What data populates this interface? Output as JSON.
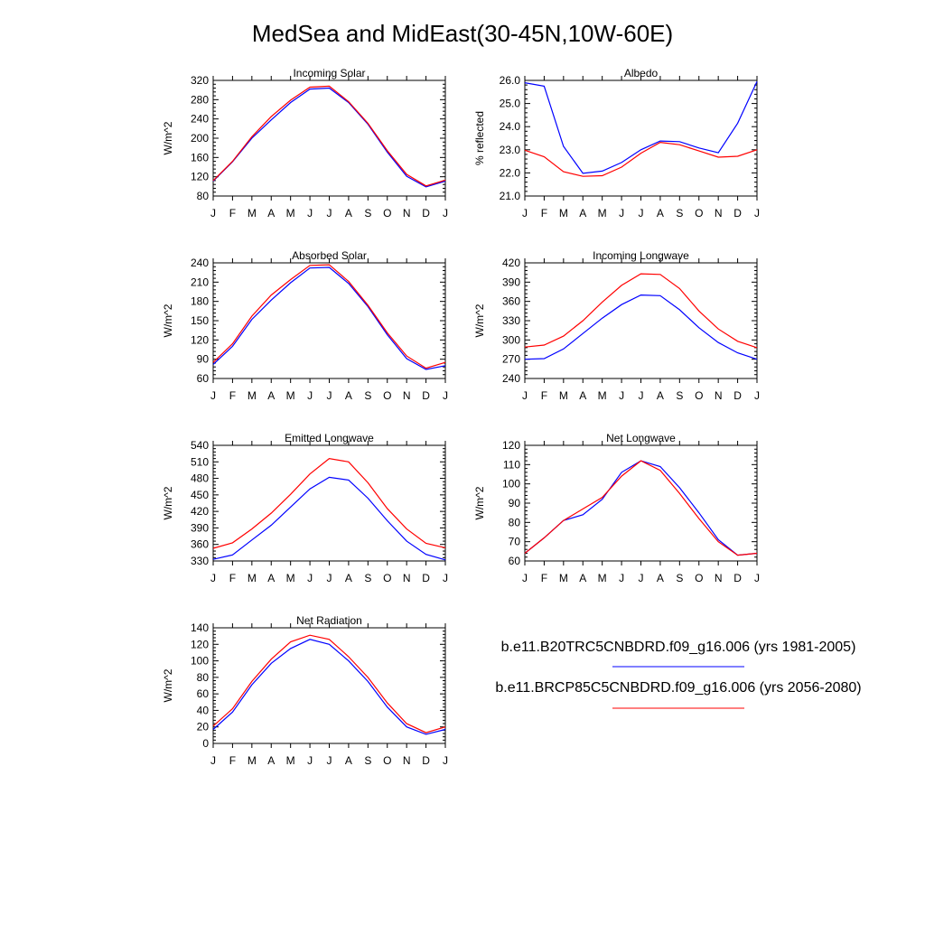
{
  "title": "MedSea and MidEast(30-45N,10W-60E)",
  "legend": {
    "entries": [
      {
        "label": "b.e11.B20TRC5CNBDRD.f09_g16.006 (yrs 1981-2005)",
        "color": "#0000ff"
      },
      {
        "label": "b.e11.BRCP85C5CNBDRD.f09_g16.006 (yrs 2056-2080)",
        "color": "#ff0000"
      }
    ]
  },
  "chart_data": [
    {
      "type": "line",
      "title": "Incoming Solar",
      "ylabel": "W/m^2",
      "xlabel": "",
      "categories": [
        "J",
        "F",
        "M",
        "A",
        "M",
        "J",
        "J",
        "A",
        "S",
        "O",
        "N",
        "D",
        "J"
      ],
      "ylim": [
        80,
        320
      ],
      "yticks": [
        80,
        120,
        160,
        200,
        240,
        280,
        320
      ],
      "ytick_labels": [
        "80",
        "120",
        "160",
        "200",
        "240",
        "280",
        "320"
      ],
      "series": [
        {
          "color": "#0000ff",
          "values": [
            111,
            151,
            200,
            238,
            274,
            302,
            304,
            274,
            229,
            171,
            121,
            99,
            111
          ]
        },
        {
          "color": "#ff0000",
          "values": [
            112,
            152,
            203,
            245,
            279,
            306,
            308,
            276,
            231,
            174,
            125,
            101,
            113
          ]
        }
      ]
    },
    {
      "type": "line",
      "title": "Albedo",
      "ylabel": "% reflected",
      "xlabel": "",
      "categories": [
        "J",
        "F",
        "M",
        "A",
        "M",
        "J",
        "J",
        "A",
        "S",
        "O",
        "N",
        "D",
        "J"
      ],
      "ylim": [
        21.0,
        26.0
      ],
      "yticks": [
        21.0,
        22.0,
        23.0,
        24.0,
        25.0,
        26.0
      ],
      "ytick_labels": [
        "21.0",
        "22.0",
        "23.0",
        "24.0",
        "25.0",
        "26.0"
      ],
      "series": [
        {
          "color": "#0000ff",
          "values": [
            25.9,
            25.75,
            23.15,
            21.98,
            22.08,
            22.45,
            23.0,
            23.38,
            23.35,
            23.08,
            22.87,
            24.15,
            25.95
          ]
        },
        {
          "color": "#ff0000",
          "values": [
            22.98,
            22.7,
            22.05,
            21.85,
            21.88,
            22.25,
            22.85,
            23.32,
            23.22,
            22.95,
            22.68,
            22.72,
            23.0
          ]
        }
      ]
    },
    {
      "type": "line",
      "title": "Absorbed Solar",
      "ylabel": "W/m^2",
      "xlabel": "",
      "categories": [
        "J",
        "F",
        "M",
        "A",
        "M",
        "J",
        "J",
        "A",
        "S",
        "O",
        "N",
        "D",
        "J"
      ],
      "ylim": [
        60,
        240
      ],
      "yticks": [
        60,
        90,
        120,
        150,
        180,
        210,
        240
      ],
      "ytick_labels": [
        "60",
        "90",
        "120",
        "150",
        "180",
        "210",
        "240"
      ],
      "series": [
        {
          "color": "#0000ff",
          "values": [
            82,
            110,
            152,
            182,
            209,
            232,
            233,
            208,
            172,
            128,
            91,
            74,
            80
          ]
        },
        {
          "color": "#ff0000",
          "values": [
            85,
            114,
            157,
            190,
            214,
            236,
            237,
            211,
            174,
            131,
            95,
            76,
            85
          ]
        }
      ]
    },
    {
      "type": "line",
      "title": "Incoming Longwave",
      "ylabel": "W/m^2",
      "xlabel": "",
      "categories": [
        "J",
        "F",
        "M",
        "A",
        "M",
        "J",
        "J",
        "A",
        "S",
        "O",
        "N",
        "D",
        "J"
      ],
      "ylim": [
        240,
        420
      ],
      "yticks": [
        240,
        270,
        300,
        330,
        360,
        390,
        420
      ],
      "ytick_labels": [
        "240",
        "270",
        "300",
        "330",
        "360",
        "390",
        "420"
      ],
      "series": [
        {
          "color": "#0000ff",
          "values": [
            270,
            271,
            286,
            310,
            334,
            355,
            370,
            369,
            347,
            319,
            296,
            280,
            270
          ]
        },
        {
          "color": "#ff0000",
          "values": [
            289,
            292,
            306,
            330,
            359,
            385,
            403,
            402,
            380,
            345,
            317,
            298,
            288
          ]
        }
      ]
    },
    {
      "type": "line",
      "title": "Emitted Longwave",
      "ylabel": "W/m^2",
      "xlabel": "",
      "categories": [
        "J",
        "F",
        "M",
        "A",
        "M",
        "J",
        "J",
        "A",
        "S",
        "O",
        "N",
        "D",
        "J"
      ],
      "ylim": [
        330,
        540
      ],
      "yticks": [
        330,
        360,
        390,
        420,
        450,
        480,
        510,
        540
      ],
      "ytick_labels": [
        "330",
        "360",
        "390",
        "420",
        "450",
        "480",
        "510",
        "540"
      ],
      "series": [
        {
          "color": "#0000ff",
          "values": [
            333,
            341,
            368,
            395,
            428,
            461,
            482,
            477,
            444,
            403,
            366,
            342,
            332
          ]
        },
        {
          "color": "#ff0000",
          "values": [
            353,
            363,
            388,
            417,
            451,
            488,
            516,
            510,
            472,
            425,
            388,
            362,
            354
          ]
        }
      ]
    },
    {
      "type": "line",
      "title": "Net Longwave",
      "ylabel": "W/m^2",
      "xlabel": "",
      "categories": [
        "J",
        "F",
        "M",
        "A",
        "M",
        "J",
        "J",
        "A",
        "S",
        "O",
        "N",
        "D",
        "J"
      ],
      "ylim": [
        60,
        120
      ],
      "yticks": [
        60,
        70,
        80,
        90,
        100,
        110,
        120
      ],
      "ytick_labels": [
        "60",
        "70",
        "80",
        "90",
        "100",
        "110",
        "120"
      ],
      "series": [
        {
          "color": "#0000ff",
          "values": [
            64,
            72,
            81,
            84,
            92,
            106,
            112,
            109,
            98,
            85,
            71,
            63,
            64
          ]
        },
        {
          "color": "#ff0000",
          "values": [
            64,
            72,
            81,
            87,
            93,
            104,
            112,
            107,
            95,
            82,
            70,
            63,
            64
          ]
        }
      ]
    },
    {
      "type": "line",
      "title": "Net Radiation",
      "ylabel": "W/m^2",
      "xlabel": "",
      "categories": [
        "J",
        "F",
        "M",
        "A",
        "M",
        "J",
        "J",
        "A",
        "S",
        "O",
        "N",
        "D",
        "J"
      ],
      "ylim": [
        0,
        140
      ],
      "yticks": [
        0,
        20,
        40,
        60,
        80,
        100,
        120,
        140
      ],
      "ytick_labels": [
        "0",
        "20",
        "40",
        "60",
        "80",
        "100",
        "120",
        "140"
      ],
      "series": [
        {
          "color": "#0000ff",
          "values": [
            17,
            38,
            71,
            97,
            115,
            126,
            120,
            100,
            75,
            44,
            20,
            11,
            17
          ]
        },
        {
          "color": "#ff0000",
          "values": [
            21,
            42,
            75,
            102,
            123,
            131,
            126,
            105,
            80,
            49,
            24,
            13,
            20
          ]
        }
      ]
    }
  ]
}
